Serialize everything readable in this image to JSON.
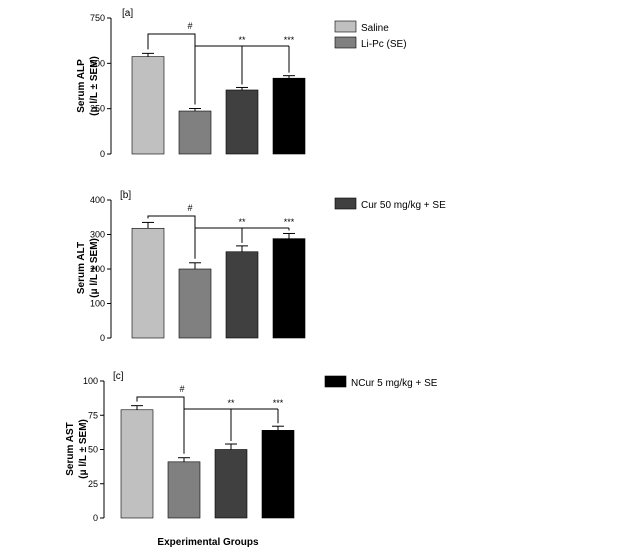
{
  "chart_data": [
    {
      "type": "bar",
      "panel_label": "[a]",
      "ylabel_line1": "Serum ALP",
      "ylabel_line2": "(μ l/L ± SEM)",
      "ylim": [
        0,
        750
      ],
      "yticks": [
        0,
        250,
        500,
        750
      ],
      "categories": [
        "Saline",
        "Li-Pc (SE)",
        "Cur 50 mg/kg + SE",
        "NCur 5 mg/kg + SE"
      ],
      "values": [
        537,
        237,
        353,
        418
      ],
      "errors": [
        18,
        14,
        14,
        14
      ],
      "significance": {
        "hash": "#",
        "b2": "**",
        "b3": "***"
      }
    },
    {
      "type": "bar",
      "panel_label": "[b]",
      "ylabel_line1": "Serum ALT",
      "ylabel_line2": "(μ l/L ± SEM)",
      "ylim": [
        0,
        400
      ],
      "yticks": [
        0,
        100,
        200,
        300,
        400
      ],
      "categories": [
        "Saline",
        "Li-Pc (SE)",
        "Cur 50 mg/kg + SE",
        "NCur 5 mg/kg + SE"
      ],
      "values": [
        318,
        200,
        250,
        288
      ],
      "errors": [
        17,
        18,
        17,
        15
      ],
      "significance": {
        "hash": "#",
        "b2": "**",
        "b3": "***"
      }
    },
    {
      "type": "bar",
      "panel_label": "[c]",
      "ylabel_line1": "Serum AST",
      "ylabel_line2": "(μ l/L ± SEM)",
      "ylim": [
        0,
        100
      ],
      "yticks": [
        0,
        25,
        50,
        75,
        100
      ],
      "categories": [
        "Saline",
        "Li-Pc (SE)",
        "Cur 50 mg/kg + SE",
        "NCur 5 mg/kg + SE"
      ],
      "values": [
        79,
        41,
        50,
        64
      ],
      "errors": [
        3,
        3,
        4,
        3
      ],
      "significance": {
        "hash": "#",
        "b2": "**",
        "b3": "***"
      }
    }
  ],
  "legend": [
    {
      "label": "Saline",
      "color": "#c0c0c0"
    },
    {
      "label": "Li-Pc (SE)",
      "color": "#808080"
    },
    {
      "label": "Cur 50 mg/kg + SE",
      "color": "#404040"
    },
    {
      "label": "NCur 5 mg/kg + SE",
      "color": "#000000"
    }
  ],
  "bar_colors": [
    "#c0c0c0",
    "#808080",
    "#404040",
    "#000000"
  ],
  "xlabel": "Experimental Groups"
}
